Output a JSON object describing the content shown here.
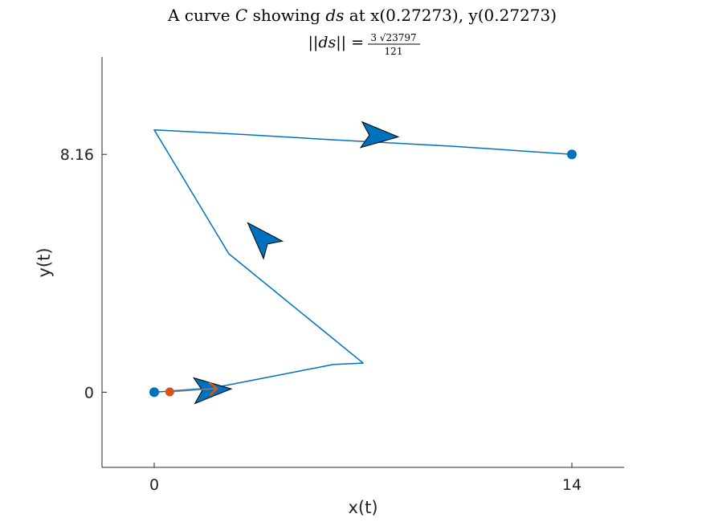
{
  "chart_data": {
    "type": "line",
    "title": {
      "prefix": "A curve",
      "curve_symbol": "C",
      "middle": "showing",
      "ds_symbol": "ds",
      "suffix": "at x(0.27273), y(0.27273)"
    },
    "subtitle": {
      "lhs": "||ds|| =",
      "numerator": "3 √23797",
      "denominator": "121"
    },
    "xlabel": "x(t)",
    "ylabel": "y(t)",
    "xticks": [
      "0",
      "14"
    ],
    "yticks": [
      "0",
      "8.16"
    ],
    "xlim": [
      -1.75,
      15.75
    ],
    "ylim": [
      -2.58,
      11.5
    ],
    "grid": false,
    "colors": {
      "curve": "#0072BD",
      "ds_vector": "#D95319",
      "gray_segment": "#808080",
      "axes": "#262626"
    },
    "curve": {
      "x": [
        0,
        2,
        4,
        5,
        6,
        7,
        2.5,
        0,
        3,
        6,
        10,
        14
      ],
      "y": [
        0,
        0.15,
        0.55,
        0.75,
        0.95,
        1.0,
        4.75,
        9.0,
        8.84,
        8.66,
        8.44,
        8.16
      ]
    },
    "start_point": {
      "x": 0,
      "y": 0
    },
    "end_point": {
      "x": 14,
      "y": 8.16
    },
    "ds_point": {
      "x": 0.52,
      "y": 0.01
    },
    "ds_arrow": {
      "x1": 0.52,
      "y1": 0.01,
      "x2": 2.1,
      "y2": 0.13
    },
    "direction_arrows": [
      {
        "x": 1.9,
        "y": 0.08,
        "dx": 1,
        "dy": 0.05
      },
      {
        "x": 3.6,
        "y": 5.3,
        "dx": -1,
        "dy": 1.1
      },
      {
        "x": 7.5,
        "y": 8.8,
        "dx": 1,
        "dy": -0.06
      }
    ]
  }
}
